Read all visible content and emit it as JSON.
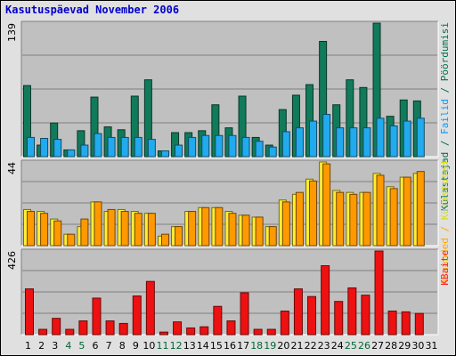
{
  "chart_data": {
    "type": "bar",
    "title": "Kasutuspäevad November 2006",
    "categories": [
      "1",
      "2",
      "3",
      "4",
      "5",
      "6",
      "7",
      "8",
      "9",
      "10",
      "11",
      "12",
      "13",
      "14",
      "15",
      "16",
      "17",
      "18",
      "19",
      "20",
      "21",
      "22",
      "23",
      "24",
      "25",
      "26",
      "27",
      "28",
      "29",
      "30",
      "31"
    ],
    "weekend_days": [
      "4",
      "5",
      "11",
      "12",
      "18",
      "19",
      "25",
      "26"
    ],
    "colors": {
      "background": "#c0c0c0",
      "frame": "#e0e0e0",
      "title": "#0000cc",
      "weekday_label": "#000000",
      "weekend_label": "#006633",
      "label_visits": "#006e4d",
      "label_files": "#0099ff",
      "label_hits": "#006e4d",
      "label_pages": "#ffaa00",
      "label_kbytes": "#ff2222"
    },
    "panels": [
      {
        "id": "top",
        "ymax_label": "139",
        "ylim": [
          0,
          139
        ],
        "side_label": [
          {
            "text": "Külastajad",
            "color": "#006e4d"
          },
          {
            "text": " / ",
            "color": "#006e4d"
          },
          {
            "text": "Failid",
            "color": "#0099ff"
          },
          {
            "text": " / ",
            "color": "#006e4d"
          },
          {
            "text": "Pöördumisi",
            "color": "#006e4d"
          }
        ],
        "series": [
          {
            "name": "Pöördumisi",
            "color": "#117a5a",
            "values": [
              74,
              12,
              35,
              7,
              27,
              62,
              31,
              28,
              63,
              80,
              6,
              25,
              25,
              27,
              54,
              30,
              63,
              20,
              12,
              49,
              64,
              75,
              120,
              54,
              80,
              72,
              139,
              42,
              59,
              58,
              null
            ]
          },
          {
            "name": "Failid",
            "color": "#22aaee",
            "values": [
              20,
              19,
              18,
              7,
              12,
              24,
              20,
              20,
              20,
              18,
              6,
              12,
              20,
              22,
              22,
              22,
              20,
              16,
              10,
              26,
              30,
              37,
              44,
              30,
              30,
              30,
              40,
              32,
              37,
              40,
              null
            ]
          }
        ]
      },
      {
        "id": "middle",
        "ymax_label": "44",
        "ylim": [
          0,
          44
        ],
        "side_label": [
          {
            "text": "Aruanded",
            "color": "#ffaa00"
          },
          {
            "text": " / ",
            "color": "#ffaa00"
          },
          {
            "text": "Külastused",
            "color": "#dddd00"
          }
        ],
        "series": [
          {
            "name": "Külastused",
            "color": "#ffee33",
            "values": [
              19,
              18,
              14,
              6,
              10,
              23,
              18,
              19,
              18,
              17,
              5,
              10,
              18,
              20,
              20,
              18,
              16,
              15,
              10,
              24,
              27,
              35,
              44,
              29,
              28,
              28,
              38,
              31,
              36,
              38,
              null
            ]
          },
          {
            "name": "Aruanded",
            "color": "#ff9900",
            "values": [
              18,
              17,
              13,
              6,
              14,
              23,
              19,
              18,
              17,
              17,
              6,
              10,
              18,
              20,
              20,
              17,
              16,
              15,
              10,
              23,
              28,
              34,
              43,
              28,
              27,
              28,
              37,
              30,
              36,
              39,
              null
            ]
          }
        ]
      },
      {
        "id": "bottom",
        "ymax_label": "426",
        "ylim": [
          0,
          426
        ],
        "side_label": [
          {
            "text": "KBaite",
            "color": "#ff2222"
          }
        ],
        "series": [
          {
            "name": "KBaite",
            "color": "#ee1111",
            "values": [
              233,
              27,
              83,
              27,
              70,
              186,
              70,
              57,
              197,
              271,
              13,
              65,
              34,
              40,
              144,
              70,
              213,
              27,
              27,
              120,
              233,
              194,
              351,
              169,
              238,
              201,
              426,
              120,
              116,
              108,
              null
            ]
          }
        ]
      }
    ]
  }
}
